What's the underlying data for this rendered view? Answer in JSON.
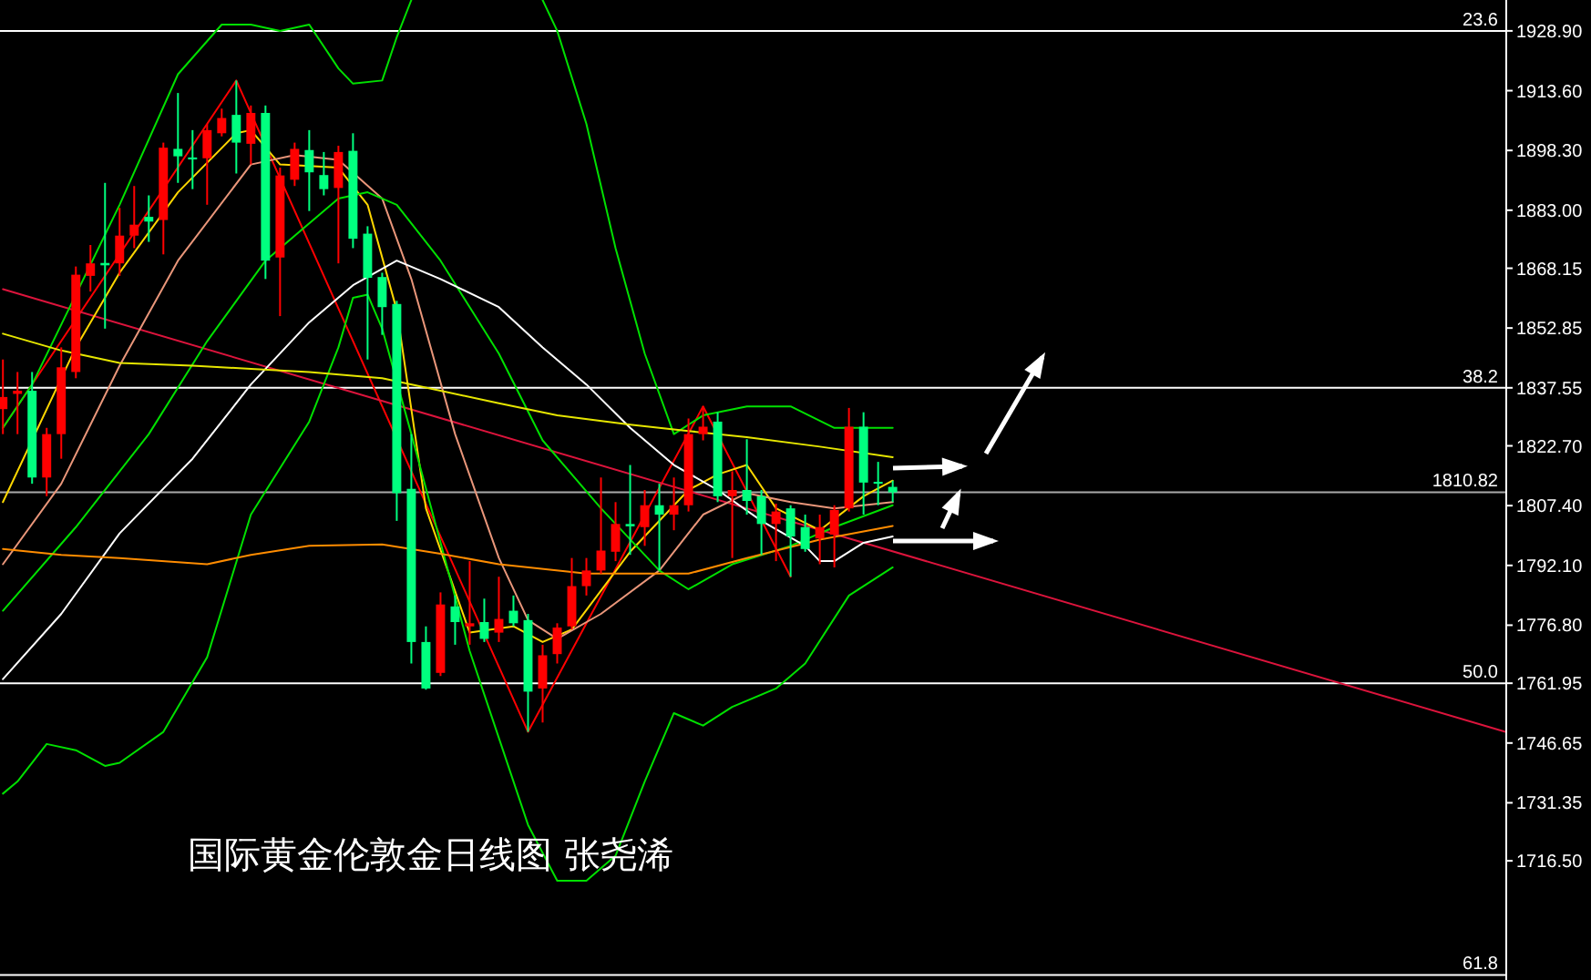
{
  "chart_data": {
    "type": "candlestick",
    "categories": [
      null,
      null,
      null,
      null,
      null,
      null,
      null,
      null,
      null,
      null,
      null,
      null,
      null,
      null,
      null,
      null,
      null,
      null,
      null,
      null,
      null,
      null,
      null,
      null,
      null,
      null,
      null,
      null,
      null,
      null,
      null,
      null,
      null,
      null,
      null,
      null,
      null,
      null,
      null,
      null,
      null,
      null,
      null,
      null,
      null,
      null,
      null,
      null,
      null,
      null,
      null,
      null,
      null,
      null,
      null,
      null,
      null,
      null,
      null,
      null,
      null,
      null,
      null,
      null,
      null,
      null,
      null,
      null,
      null,
      null,
      null,
      null,
      null,
      null,
      null,
      null,
      null,
      null,
      null,
      null,
      null,
      null,
      null,
      null,
      null,
      null,
      null,
      null,
      null,
      null,
      null,
      null,
      null,
      null,
      null,
      null,
      null,
      null,
      null,
      null,
      null,
      null,
      null,
      null
    ],
    "ohlc": [
      [
        1832.1,
        1844.8,
        1825.7,
        1835.2
      ],
      [
        1836.0,
        1841.6,
        1825.7,
        1836.8
      ],
      [
        1836.8,
        1841.6,
        1813.0,
        1814.6
      ],
      [
        1814.6,
        1827.3,
        1809.8,
        1825.7
      ],
      [
        1825.7,
        1847.9,
        1819.4,
        1842.8
      ],
      [
        1841.6,
        1868.6,
        1840.0,
        1866.5
      ],
      [
        1866.2,
        1874.1,
        1862.2,
        1869.4
      ],
      [
        1869.5,
        1890.0,
        1852.7,
        1868.9
      ],
      [
        1869.4,
        1883.6,
        1866.2,
        1876.5
      ],
      [
        1876.5,
        1889.2,
        1873.3,
        1879.3
      ],
      [
        1881.3,
        1886.8,
        1874.9,
        1880.1
      ],
      [
        1880.5,
        1900.3,
        1871.7,
        1899.0
      ],
      [
        1898.7,
        1913.0,
        1890.0,
        1896.8
      ],
      [
        1896.5,
        1903.5,
        1888.4,
        1896.0
      ],
      [
        1896.3,
        1905.1,
        1884.4,
        1903.5
      ],
      [
        1902.7,
        1909.0,
        1901.9,
        1906.6
      ],
      [
        1907.4,
        1916.2,
        1892.4,
        1900.3
      ],
      [
        1900.0,
        1909.8,
        1894.7,
        1907.9
      ],
      [
        1907.9,
        1909.8,
        1865.4,
        1870.1
      ],
      [
        1870.9,
        1893.9,
        1855.9,
        1891.9
      ],
      [
        1890.8,
        1900.3,
        1889.2,
        1898.7
      ],
      [
        1898.4,
        1903.5,
        1882.8,
        1892.7
      ],
      [
        1892.0,
        1897.9,
        1886.8,
        1888.4
      ],
      [
        1888.7,
        1899.5,
        1869.4,
        1897.9
      ],
      [
        1898.2,
        1902.7,
        1873.3,
        1875.7
      ],
      [
        1877.0,
        1878.9,
        1844.8,
        1865.7
      ],
      [
        1865.9,
        1867.0,
        1851.1,
        1858.2
      ],
      [
        1859.0,
        1859.8,
        1803.5,
        1810.6
      ],
      [
        1811.7,
        1825.7,
        1767.0,
        1772.5
      ],
      [
        1772.5,
        1776.5,
        1760.3,
        1760.6
      ],
      [
        1764.6,
        1785.2,
        1763.8,
        1782.1
      ],
      [
        1781.6,
        1784.4,
        1771.8,
        1777.6
      ],
      [
        1776.5,
        1793.2,
        1771.8,
        1777.3
      ],
      [
        1777.6,
        1783.6,
        1772.5,
        1773.3
      ],
      [
        1774.9,
        1789.2,
        1772.5,
        1778.4
      ],
      [
        1780.5,
        1784.4,
        1776.5,
        1777.3
      ],
      [
        1778.1,
        1779.7,
        1749.5,
        1759.8
      ],
      [
        1760.6,
        1771.8,
        1751.9,
        1769.1
      ],
      [
        1769.4,
        1777.3,
        1767.0,
        1776.2
      ],
      [
        1776.5,
        1794.0,
        1775.7,
        1786.8
      ],
      [
        1786.8,
        1794.0,
        1784.4,
        1790.8
      ],
      [
        1790.8,
        1814.6,
        1790.0,
        1795.9
      ],
      [
        1795.6,
        1808.3,
        1793.2,
        1802.7
      ],
      [
        1802.7,
        1817.8,
        1794.8,
        1802.1
      ],
      [
        1801.9,
        1811.4,
        1797.1,
        1807.5
      ],
      [
        1807.5,
        1813.0,
        1790.8,
        1805.1
      ],
      [
        1805.1,
        1814.6,
        1801.1,
        1807.5
      ],
      [
        1807.5,
        1829.7,
        1805.9,
        1825.7
      ],
      [
        1825.7,
        1832.8,
        1824.1,
        1827.6
      ],
      [
        1828.9,
        1831.3,
        1808.3,
        1809.8
      ],
      [
        1809.8,
        1816.2,
        1794.0,
        1811.4
      ],
      [
        1811.4,
        1824.4,
        1805.1,
        1808.6
      ],
      [
        1809.8,
        1811.4,
        1794.8,
        1802.7
      ],
      [
        1802.7,
        1807.9,
        1793.2,
        1805.9
      ],
      [
        1806.7,
        1807.5,
        1789.2,
        1799.5
      ],
      [
        1801.9,
        1805.1,
        1795.6,
        1796.3
      ],
      [
        1799.0,
        1805.1,
        1792.4,
        1801.9
      ],
      [
        1800.0,
        1807.5,
        1791.6,
        1806.3
      ],
      [
        1806.7,
        1832.4,
        1805.9,
        1827.6
      ],
      [
        1827.6,
        1831.3,
        1805.1,
        1813.3
      ],
      [
        1813.5,
        1818.6,
        1807.5,
        1813.0
      ],
      [
        1812.2,
        1813.8,
        1808.3,
        1810.8
      ],
      null,
      null,
      null,
      null,
      null,
      null,
      null,
      null,
      null,
      null,
      null,
      null,
      null,
      null,
      null,
      null,
      null,
      null,
      null,
      null,
      null,
      null,
      null,
      null,
      null,
      null,
      null,
      null,
      null,
      null,
      null,
      null,
      null,
      null,
      null,
      null,
      null,
      null,
      null,
      null,
      null,
      null
    ],
    "colors": [
      "#ff0000",
      "#ff0000",
      "#00ff7f",
      "#ff0000",
      "#ff0000",
      "#ff0000",
      "#ff0000",
      "#00ff7f",
      "#ff0000",
      "#ff0000",
      "#00ff7f",
      "#ff0000",
      "#00ff7f",
      "#00ff7f",
      "#ff0000",
      "#ff0000",
      "#00ff7f",
      "#ff0000",
      "#00ff7f",
      "#ff0000",
      "#ff0000",
      "#00ff7f",
      "#00ff7f",
      "#ff0000",
      "#00ff7f",
      "#00ff7f",
      "#00ff7f",
      "#00ff7f",
      "#00ff7f",
      "#00ff7f",
      "#ff0000",
      "#00ff7f",
      "#ff0000",
      "#00ff7f",
      "#ff0000",
      "#00ff7f",
      "#00ff7f",
      "#ff0000",
      "#ff0000",
      "#ff0000",
      "#ff0000",
      "#ff0000",
      "#ff0000",
      "#00ff7f",
      "#ff0000",
      "#00ff7f",
      "#ff0000",
      "#ff0000",
      "#ff0000",
      "#00ff7f",
      "#ff0000",
      "#00ff7f",
      "#00ff7f",
      "#ff0000",
      "#00ff7f",
      "#00ff7f",
      "#ff0000",
      "#ff0000",
      "#ff0000",
      "#00ff7f",
      "#00ff7f",
      "#00ff7f",
      null,
      null,
      null,
      null,
      null,
      null,
      null,
      null,
      null,
      null,
      null,
      null,
      null,
      null,
      null,
      null,
      null,
      null,
      null,
      null,
      null,
      null,
      null,
      null,
      null,
      null,
      null,
      null,
      null,
      null,
      null,
      null,
      null,
      null,
      null,
      null,
      null,
      null,
      null,
      null,
      null,
      null
    ],
    "series": [
      {
        "type": "line",
        "color": "#ff0000",
        "values": [
          1827.3,
          null,
          null,
          null,
          null,
          null,
          null,
          null,
          null,
          null,
          null,
          null,
          null,
          null,
          null,
          null,
          1916.2,
          null,
          null,
          null,
          null,
          null,
          null,
          null,
          null,
          null,
          null,
          null,
          null,
          null,
          null,
          null,
          null,
          null,
          null,
          null,
          1749.5,
          null,
          null,
          null,
          null,
          null,
          null,
          null,
          null,
          null,
          null,
          null,
          1832.8,
          null,
          null,
          null,
          null,
          null,
          1789.2,
          null,
          null,
          null,
          null,
          null,
          null,
          null,
          null,
          null,
          null,
          null,
          null,
          null,
          null,
          null,
          null,
          null,
          null,
          null,
          null,
          null,
          null,
          null,
          null,
          null,
          null,
          null,
          null,
          null,
          null,
          null,
          null,
          null,
          null,
          null,
          null,
          null,
          null,
          null,
          null,
          null,
          null,
          null,
          null,
          null,
          null,
          null,
          null,
          null
        ]
      },
      {
        "type": "line",
        "color": "#dc143c",
        "values": [
          1862.8,
          null,
          null,
          null,
          null,
          null,
          null,
          null,
          null,
          null,
          null,
          null,
          null,
          null,
          null,
          null,
          null,
          null,
          null,
          null,
          null,
          null,
          null,
          null,
          null,
          null,
          null,
          null,
          null,
          null,
          null,
          null,
          null,
          null,
          null,
          null,
          null,
          null,
          null,
          null,
          null,
          null,
          null,
          null,
          null,
          null,
          null,
          null,
          null,
          null,
          null,
          null,
          null,
          null,
          null,
          null,
          null,
          null,
          null,
          null,
          null,
          null,
          null,
          null,
          null,
          null,
          null,
          null,
          null,
          null,
          null,
          null,
          null,
          null,
          null,
          null,
          null,
          null,
          null,
          null,
          null,
          null,
          null,
          null,
          null,
          null,
          null,
          null,
          null,
          null,
          null,
          null,
          null,
          null,
          null,
          null,
          null,
          null,
          null,
          null,
          null,
          null,
          null,
          1749.5
        ]
      },
      {
        "type": "line",
        "color": "#ffd700",
        "values": [
          1808.3,
          null,
          null,
          null,
          null,
          1847.9,
          null,
          null,
          1867.0,
          null,
          null,
          null,
          1887.6,
          null,
          null,
          null,
          1902.7,
          1903.5,
          null,
          1894.7,
          null,
          null,
          null,
          1893.9,
          null,
          1884.4,
          null,
          1857.4,
          null,
          1806.7,
          null,
          null,
          1774.9,
          null,
          null,
          1776.5,
          null,
          1772.5,
          null,
          1775.7,
          null,
          null,
          null,
          1795.6,
          null,
          null,
          null,
          1811.4,
          null,
          1815.4,
          null,
          1817.8,
          null,
          1806.7,
          null,
          null,
          1801.1,
          null,
          null,
          1809.8,
          null,
          1813.8,
          null,
          null,
          null,
          null,
          null,
          null,
          null,
          null,
          null,
          null,
          null,
          null,
          null,
          null,
          null,
          null,
          null,
          null,
          null,
          null,
          null,
          null,
          null,
          null,
          null,
          null,
          null,
          null,
          null,
          null,
          null,
          null,
          null,
          null,
          null,
          null,
          null,
          null,
          null,
          null,
          null,
          null
        ]
      },
      {
        "type": "line",
        "color": "#e9967a",
        "values": [
          1792.4,
          null,
          null,
          null,
          1813.0,
          null,
          null,
          null,
          1843.2,
          null,
          null,
          null,
          1870.1,
          null,
          null,
          null,
          null,
          1894.7,
          null,
          null,
          1897.1,
          null,
          null,
          1895.9,
          null,
          null,
          1886.0,
          null,
          1865.4,
          null,
          null,
          1825.7,
          null,
          null,
          1794.0,
          null,
          1778.1,
          null,
          1773.3,
          null,
          null,
          1779.7,
          null,
          null,
          null,
          1790.8,
          null,
          null,
          1805.1,
          null,
          null,
          1810.6,
          null,
          null,
          1808.3,
          null,
          null,
          1806.7,
          null,
          null,
          null,
          1808.3,
          null,
          null,
          null,
          null,
          null,
          null,
          null,
          null,
          null,
          null,
          null,
          null,
          null,
          null,
          null,
          null,
          null,
          null,
          null,
          null,
          null,
          null,
          null,
          null,
          null,
          null,
          null,
          null,
          null,
          null,
          null,
          null,
          null,
          null,
          null,
          null,
          null,
          null,
          null,
          null,
          null,
          null
        ]
      },
      {
        "type": "line",
        "color": "#00e000",
        "values": [
          1780.5,
          null,
          null,
          null,
          null,
          1801.9,
          null,
          null,
          null,
          null,
          1825.7,
          null,
          null,
          null,
          1849.5,
          null,
          null,
          null,
          1870.1,
          null,
          null,
          null,
          null,
          1886.0,
          null,
          1887.6,
          null,
          1884.4,
          null,
          null,
          1870.1,
          null,
          null,
          null,
          1846.3,
          null,
          null,
          1824.1,
          null,
          null,
          null,
          1806.7,
          null,
          null,
          null,
          1790.8,
          null,
          1786.0,
          null,
          null,
          1792.4,
          null,
          null,
          null,
          1797.1,
          null,
          null,
          1801.9,
          null,
          null,
          null,
          1807.5,
          null,
          null,
          null,
          null,
          null,
          null,
          null,
          null,
          null,
          null,
          null,
          null,
          null,
          null,
          null,
          null,
          null,
          null,
          null,
          null,
          null,
          null,
          null,
          null,
          null,
          null,
          null,
          null,
          null,
          null,
          null,
          null,
          null,
          null,
          null,
          null,
          null,
          null,
          null,
          null,
          null,
          null
        ]
      },
      {
        "type": "line",
        "color": "#00e000",
        "values": [
          1827.3,
          null,
          1838.4,
          null,
          null,
          null,
          null,
          null,
          1884.4,
          null,
          null,
          null,
          1917.8,
          null,
          null,
          1930.5,
          null,
          1930.5,
          null,
          1928.9,
          null,
          1930.5,
          null,
          1919.3,
          1915.4,
          null,
          1916.2,
          1927.3,
          1936.8,
          null,
          null,
          null,
          null,
          null,
          null,
          null,
          null,
          null,
          null,
          null,
          null,
          null,
          null,
          null,
          null,
          null,
          null,
          null,
          null,
          null,
          null,
          null,
          null,
          null,
          null,
          null,
          null,
          null,
          null,
          null,
          null,
          null,
          null,
          null,
          null,
          null,
          null,
          null,
          null,
          null,
          null,
          null,
          null,
          null,
          null,
          null,
          null,
          null,
          null,
          null,
          null,
          null,
          null,
          null,
          null,
          null,
          null,
          null,
          null,
          null,
          null,
          null,
          null,
          null,
          null,
          null,
          null,
          null,
          null,
          null,
          null,
          null,
          null,
          null
        ]
      },
      {
        "type": "line",
        "color": "#00e000",
        "values": [
          null,
          null,
          null,
          null,
          null,
          null,
          null,
          null,
          null,
          null,
          null,
          null,
          null,
          null,
          null,
          null,
          null,
          null,
          null,
          null,
          null,
          null,
          null,
          null,
          null,
          null,
          null,
          null,
          null,
          null,
          null,
          null,
          null,
          null,
          null,
          null,
          null,
          1936.8,
          1928.9,
          null,
          1905.1,
          null,
          1873.3,
          null,
          1846.3,
          null,
          1825.7,
          null,
          1830.5,
          null,
          null,
          1832.8,
          null,
          null,
          1832.8,
          null,
          null,
          1827.3,
          null,
          null,
          null,
          1827.3,
          null,
          null,
          null,
          null,
          null,
          null,
          null,
          null,
          null,
          null,
          null,
          null,
          null,
          null,
          null,
          null,
          null,
          null,
          null,
          null,
          null,
          null,
          null,
          null,
          null,
          null,
          null,
          null,
          null,
          null,
          null,
          null,
          null,
          null,
          null,
          null,
          null,
          null,
          null,
          null,
          null,
          null
        ]
      },
      {
        "type": "line",
        "color": "#00e000",
        "values": [
          1733.7,
          1736.8,
          null,
          1746.4,
          null,
          1744.8,
          null,
          1740.8,
          1741.6,
          null,
          null,
          1749.5,
          null,
          null,
          1768.6,
          null,
          null,
          1805.1,
          null,
          null,
          null,
          1828.9,
          null,
          1847.9,
          1860.6,
          1861.4,
          1852.7,
          null,
          1825.7,
          null,
          null,
          null,
          1770.2,
          null,
          null,
          null,
          1725.7,
          null,
          1711.4,
          null,
          1711.4,
          null,
          1717.8,
          null,
          1736.8,
          null,
          1754.3,
          null,
          1751.1,
          null,
          1755.9,
          null,
          null,
          1760.6,
          null,
          1767.0,
          null,
          null,
          1784.4,
          null,
          null,
          1791.6,
          null,
          null,
          null,
          null,
          null,
          null,
          null,
          null,
          null,
          null,
          null,
          null,
          null,
          null,
          null,
          null,
          null,
          null,
          null,
          null,
          null,
          null,
          null,
          null,
          null,
          null,
          null,
          null,
          null,
          null,
          null,
          null,
          null,
          null,
          null,
          null,
          null,
          null,
          null,
          null,
          null,
          null
        ]
      },
      {
        "type": "line",
        "color": "#ffffff",
        "values": [
          1763.0,
          null,
          null,
          null,
          1779.7,
          null,
          null,
          null,
          1800.3,
          null,
          null,
          null,
          null,
          1819.4,
          null,
          null,
          null,
          1838.4,
          null,
          null,
          null,
          1854.3,
          null,
          null,
          1863.8,
          null,
          null,
          1870.1,
          null,
          null,
          1865.4,
          null,
          null,
          null,
          1858.2,
          null,
          null,
          1847.9,
          null,
          null,
          1838.4,
          null,
          null,
          1827.3,
          null,
          null,
          1817.8,
          null,
          null,
          1811.4,
          null,
          null,
          1803.5,
          null,
          null,
          1797.1,
          1793.2,
          1793.2,
          null,
          1797.9,
          null,
          1799.5,
          null,
          null,
          null,
          null,
          null,
          null,
          null,
          null,
          null,
          null,
          null,
          null,
          null,
          null,
          null,
          null,
          null,
          null,
          null,
          null,
          null,
          null,
          null,
          null,
          null,
          null,
          null,
          null,
          null,
          null,
          null,
          null,
          null,
          null,
          null,
          null,
          null,
          null,
          null,
          null,
          null,
          null
        ]
      },
      {
        "type": "line",
        "color": "#e6e600",
        "values": [
          1851.4,
          null,
          null,
          null,
          1847.1,
          null,
          null,
          null,
          1843.9,
          null,
          null,
          null,
          null,
          1843.2,
          null,
          null,
          null,
          1842.4,
          null,
          null,
          null,
          1841.6,
          null,
          null,
          null,
          null,
          1840.0,
          null,
          null,
          null,
          1836.8,
          null,
          null,
          null,
          1833.6,
          null,
          null,
          null,
          1830.5,
          null,
          null,
          null,
          null,
          1828.1,
          null,
          null,
          null,
          1826.5,
          null,
          null,
          null,
          1824.9,
          null,
          null,
          null,
          null,
          1822.5,
          null,
          null,
          null,
          null,
          1819.8,
          null,
          null,
          null,
          null,
          null,
          null,
          null,
          null,
          null,
          null,
          null,
          null,
          null,
          null,
          null,
          null,
          null,
          null,
          null,
          null,
          null,
          null,
          null,
          null,
          null,
          null,
          null,
          null,
          null,
          null,
          null,
          null,
          null,
          null,
          null,
          null,
          null,
          null,
          null,
          null,
          null,
          null
        ]
      },
      {
        "type": "line",
        "color": "#ff8c00",
        "values": [
          1796.3,
          null,
          null,
          null,
          1794.8,
          null,
          null,
          null,
          1794.0,
          null,
          null,
          null,
          null,
          null,
          1792.4,
          null,
          null,
          1794.8,
          null,
          null,
          null,
          1797.1,
          null,
          null,
          null,
          null,
          1797.5,
          null,
          null,
          null,
          1795.1,
          null,
          null,
          null,
          1792.4,
          null,
          null,
          null,
          null,
          null,
          1790.0,
          null,
          null,
          null,
          null,
          null,
          null,
          1790.0,
          null,
          null,
          null,
          1794.0,
          null,
          null,
          null,
          null,
          1798.7,
          null,
          null,
          null,
          null,
          1802.2,
          null,
          null,
          null,
          null,
          null,
          null,
          null,
          null,
          null,
          null,
          null,
          null,
          null,
          null,
          null,
          null,
          null,
          null,
          null,
          null,
          null,
          null,
          null,
          null,
          null,
          null,
          null,
          null,
          null,
          null,
          null,
          null,
          null,
          null,
          null,
          null,
          null,
          null,
          null,
          null,
          null,
          null
        ]
      }
    ],
    "ylim": [
      1686,
      1936.8
    ],
    "yticks": [
      {
        "value": 1928.9,
        "label": "1928.90"
      },
      {
        "value": 1913.6,
        "label": "1913.60"
      },
      {
        "value": 1898.3,
        "label": "1898.30"
      },
      {
        "value": 1883.0,
        "label": "1883.00"
      },
      {
        "value": 1868.15,
        "label": "1868.15"
      },
      {
        "value": 1852.85,
        "label": "1852.85"
      },
      {
        "value": 1837.55,
        "label": "1837.55"
      },
      {
        "value": 1822.7,
        "label": "1822.70"
      },
      {
        "value": 1807.4,
        "label": "1807.40"
      },
      {
        "value": 1792.1,
        "label": "1792.10"
      },
      {
        "value": 1776.8,
        "label": "1776.80"
      },
      {
        "value": 1761.95,
        "label": "1761.95"
      },
      {
        "value": 1746.65,
        "label": "1746.65"
      },
      {
        "value": 1731.35,
        "label": "1731.35"
      },
      {
        "value": 1716.5,
        "label": "1716.50"
      }
    ],
    "ref_lines": [
      {
        "axis": "y",
        "value": 1928.9,
        "color": "#ffffff"
      },
      {
        "axis": "y",
        "value": 1837.55,
        "color": "#ffffff"
      },
      {
        "axis": "y",
        "value": 1761.95,
        "color": "#ffffff"
      },
      {
        "axis": "y",
        "value": 1687.3,
        "color": "#ffffff"
      },
      {
        "axis": "y",
        "value": 1810.82,
        "label": "1810.82",
        "color": "#a9a9a9"
      }
    ],
    "annotations": [
      "国际黄金伦敦金日线图 张尧浠",
      {
        "text": "23.6",
        "y": 1928.9
      },
      {
        "text": "38.2",
        "y": 1837.55
      },
      {
        "text": "50.0",
        "y": 1761.95
      },
      {
        "text": "61.8",
        "y": 1687.3
      }
    ],
    "tick_labels": "y",
    "grid": false
  }
}
